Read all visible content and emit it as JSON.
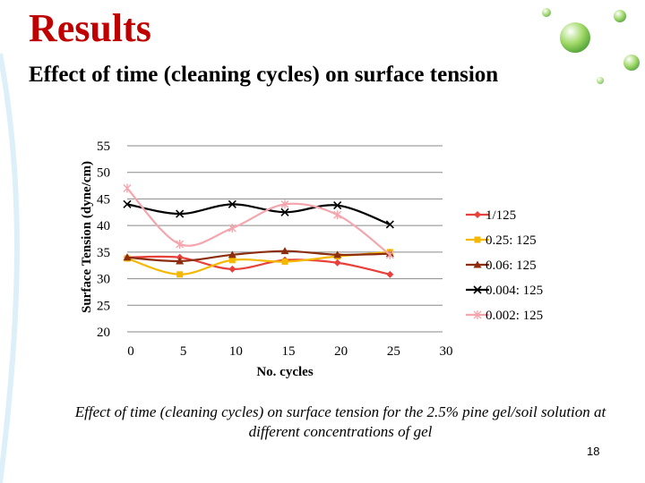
{
  "slide": {
    "title": "Results",
    "subtitle": "Effect of time (cleaning cycles) on surface tension",
    "caption": "Effect of time (cleaning cycles) on surface tension for the 2.5% pine gel/soil solution at different concentrations of gel",
    "page_number": "18"
  },
  "chart_data": {
    "type": "line",
    "title": "",
    "xlabel": "No. cycles",
    "ylabel": "Surface Tension (dyne/cm)",
    "xlim": [
      0,
      30
    ],
    "ylim": [
      20,
      55
    ],
    "x_ticks": [
      "0",
      "5",
      "10",
      "15",
      "20",
      "25",
      "30"
    ],
    "y_ticks": [
      "20",
      "25",
      "30",
      "35",
      "40",
      "45",
      "50",
      "55"
    ],
    "grid": "horizontal",
    "legend": "right",
    "series": [
      {
        "name": "1/125",
        "color": "#e8403a",
        "marker": "diamond",
        "x": [
          0,
          5,
          10,
          15,
          20,
          25
        ],
        "y": [
          34,
          34,
          31.8,
          33.5,
          33,
          30.8
        ]
      },
      {
        "name": "0.25: 125",
        "color": "#f5b800",
        "marker": "square",
        "x": [
          0,
          5,
          10,
          15,
          20,
          25
        ],
        "y": [
          33.8,
          30.8,
          33.5,
          33.2,
          34.2,
          35
        ]
      },
      {
        "name": "0.06: 125",
        "color": "#8b2d0e",
        "marker": "triangle",
        "x": [
          0,
          5,
          10,
          15,
          20,
          25
        ],
        "y": [
          34,
          33.3,
          34.5,
          35.2,
          34.5,
          34.7
        ]
      },
      {
        "name": "0.004: 125",
        "color": "#000000",
        "marker": "x",
        "x": [
          0,
          5,
          10,
          15,
          20,
          25
        ],
        "y": [
          44,
          42.2,
          44,
          42.5,
          43.8,
          40.2
        ]
      },
      {
        "name": "0.002: 125",
        "color": "#f4a6ae",
        "marker": "star",
        "x": [
          0,
          5,
          10,
          15,
          20,
          25
        ],
        "y": [
          47,
          36.5,
          39.5,
          44,
          42,
          34.5
        ]
      }
    ]
  }
}
